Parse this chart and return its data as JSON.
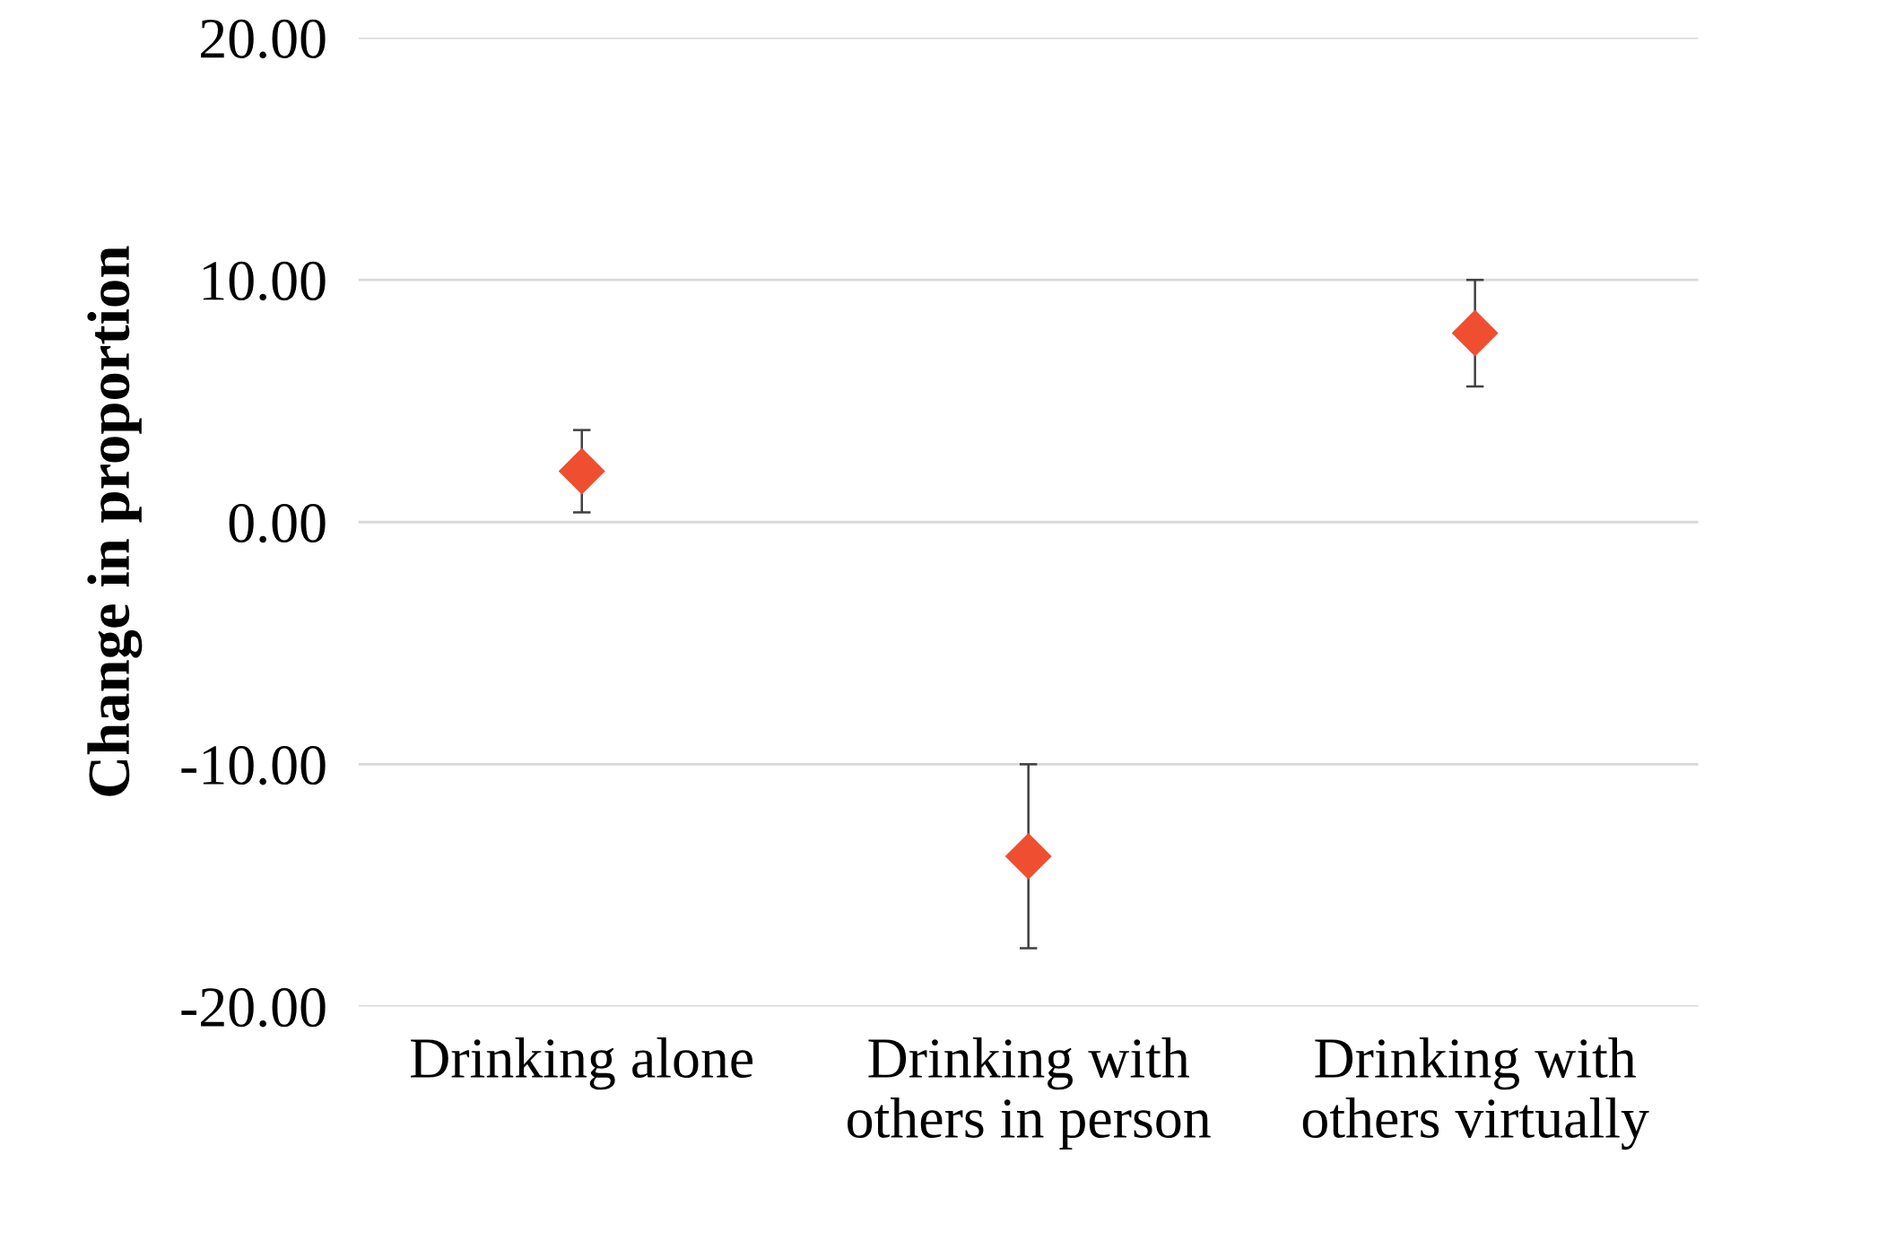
{
  "chart_data": {
    "type": "scatter",
    "ylabel": "Change in proportion",
    "categories": [
      "Drinking alone",
      "Drinking with\nothers in person",
      "Drinking with\nothers virtually"
    ],
    "values": [
      2.1,
      -13.8,
      7.8
    ],
    "errors": [
      1.7,
      3.8,
      2.2
    ],
    "color": "#f04e30",
    "marker": "diamond",
    "ylim": [
      -20,
      20
    ],
    "yticks": [
      {
        "value": -20,
        "label": "-20.00"
      },
      {
        "value": -10,
        "label": "-10.00"
      },
      {
        "value": 0,
        "label": "0.00"
      },
      {
        "value": 10,
        "label": "10.00"
      },
      {
        "value": 20,
        "label": "20.00"
      }
    ],
    "grid": "y",
    "legend": false
  }
}
